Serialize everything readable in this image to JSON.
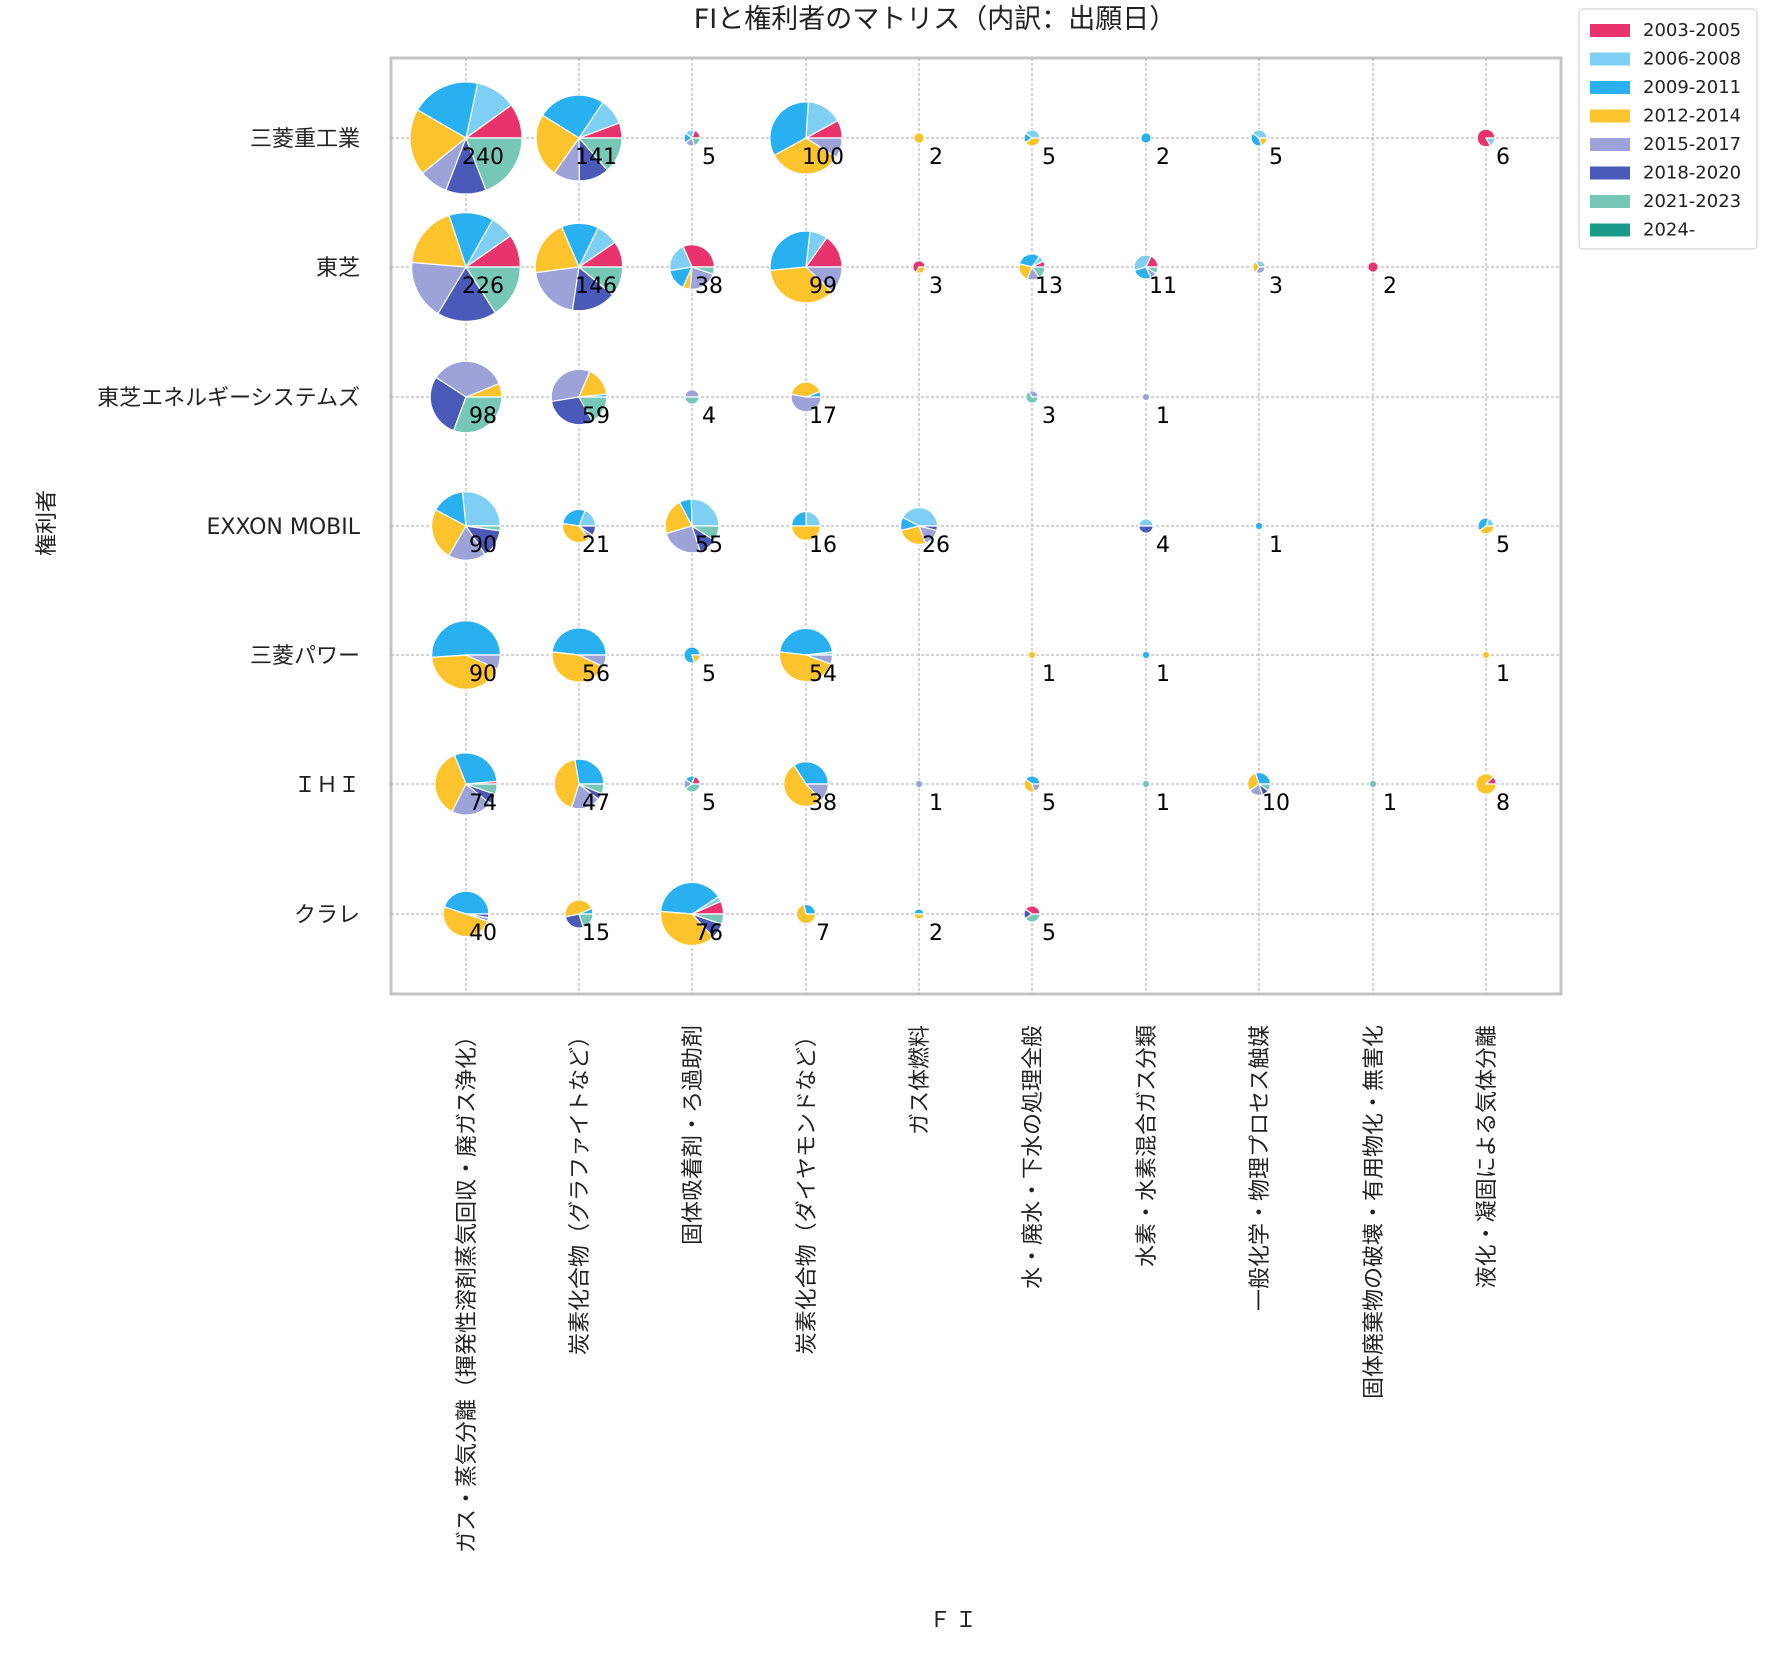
{
  "chart_data": {
    "type": "pie",
    "subtype": "pie-matrix",
    "title": "FIと権利者のマトリス（内訳：出願日）",
    "xlabel": "ＦＩ",
    "ylabel": "権利者",
    "grid": true,
    "legend_position": "top-right",
    "rows": [
      "三菱重工業",
      "東芝",
      "東芝エネルギーシステムズ",
      "EXXON MOBIL",
      "三菱パワー",
      "ＩＨＩ",
      "クラレ"
    ],
    "columns": [
      "ガス・蒸気分離（揮発性溶剤蒸気回収・廃ガス浄化）",
      "炭素化合物（グラファイトなど）",
      "固体吸着剤・ろ過助剤",
      "炭素化合物（ダイヤモンドなど）",
      "ガス体燃料",
      "水・廃水・下水の処理全般",
      "水素・水素混合ガス分類",
      "一般化学・物理プロセス触媒",
      "固体廃棄物の破壊・有用物化・無害化",
      "液化・凝固による気体分離"
    ],
    "series": [
      {
        "name": "2003-2005",
        "color": "#e8336d"
      },
      {
        "name": "2006-2008",
        "color": "#7fcff5"
      },
      {
        "name": "2009-2011",
        "color": "#29b0f0"
      },
      {
        "name": "2012-2014",
        "color": "#fdc32d"
      },
      {
        "name": "2015-2017",
        "color": "#9da3d8"
      },
      {
        "name": "2018-2020",
        "color": "#4b5ab8"
      },
      {
        "name": "2021-2023",
        "color": "#76c7b6"
      },
      {
        "name": "2024-",
        "color": "#1a9a88"
      }
    ],
    "cells": [
      {
        "row": 0,
        "col": 0,
        "total": 240,
        "values": [
          24,
          28,
          48,
          46,
          20,
          28,
          46,
          0
        ]
      },
      {
        "row": 0,
        "col": 1,
        "total": 141,
        "values": [
          8,
          14,
          36,
          34,
          14,
          16,
          19,
          0
        ]
      },
      {
        "row": 0,
        "col": 2,
        "total": 5,
        "values": [
          1,
          1,
          1,
          0,
          1,
          0,
          1,
          0
        ]
      },
      {
        "row": 0,
        "col": 3,
        "total": 100,
        "values": [
          8,
          16,
          34,
          33,
          9,
          0,
          0,
          0
        ]
      },
      {
        "row": 0,
        "col": 4,
        "total": 2,
        "values": [
          0,
          0,
          0,
          2,
          0,
          0,
          0,
          0
        ]
      },
      {
        "row": 0,
        "col": 5,
        "total": 5,
        "values": [
          0,
          2,
          1,
          2,
          0,
          0,
          0,
          0
        ]
      },
      {
        "row": 0,
        "col": 6,
        "total": 2,
        "values": [
          0,
          0,
          2,
          0,
          0,
          0,
          0,
          0
        ]
      },
      {
        "row": 0,
        "col": 7,
        "total": 5,
        "values": [
          0,
          2,
          2,
          1,
          0,
          0,
          0,
          0
        ]
      },
      {
        "row": 0,
        "col": 9,
        "total": 6,
        "values": [
          5,
          1,
          0,
          0,
          0,
          0,
          0,
          0
        ]
      },
      {
        "row": 1,
        "col": 0,
        "total": 226,
        "values": [
          22,
          16,
          30,
          42,
          40,
          40,
          36,
          0
        ]
      },
      {
        "row": 1,
        "col": 1,
        "total": 146,
        "values": [
          14,
          12,
          20,
          30,
          30,
          24,
          16,
          0
        ]
      },
      {
        "row": 1,
        "col": 2,
        "total": 38,
        "values": [
          12,
          8,
          6,
          2,
          8,
          0,
          2,
          0
        ]
      },
      {
        "row": 1,
        "col": 3,
        "total": 99,
        "values": [
          15,
          8,
          28,
          36,
          12,
          0,
          0,
          0
        ]
      },
      {
        "row": 1,
        "col": 4,
        "total": 3,
        "values": [
          2,
          0,
          0,
          1,
          0,
          0,
          0,
          0
        ]
      },
      {
        "row": 1,
        "col": 5,
        "total": 13,
        "values": [
          1,
          1,
          4,
          3,
          2,
          0,
          2,
          0
        ]
      },
      {
        "row": 1,
        "col": 6,
        "total": 11,
        "values": [
          2,
          4,
          3,
          0,
          1,
          0,
          1,
          0
        ]
      },
      {
        "row": 1,
        "col": 7,
        "total": 3,
        "values": [
          0,
          1,
          0,
          1,
          1,
          0,
          0,
          0
        ]
      },
      {
        "row": 1,
        "col": 8,
        "total": 2,
        "values": [
          2,
          0,
          0,
          0,
          0,
          0,
          0,
          0
        ]
      },
      {
        "row": 2,
        "col": 0,
        "total": 98,
        "values": [
          0,
          0,
          0,
          6,
          34,
          28,
          30,
          0
        ]
      },
      {
        "row": 2,
        "col": 1,
        "total": 59,
        "values": [
          0,
          0,
          1,
          10,
          20,
          18,
          10,
          0
        ]
      },
      {
        "row": 2,
        "col": 2,
        "total": 4,
        "values": [
          0,
          0,
          0,
          0,
          2,
          0,
          2,
          0
        ]
      },
      {
        "row": 2,
        "col": 3,
        "total": 17,
        "values": [
          0,
          0,
          1,
          7,
          9,
          0,
          0,
          0
        ]
      },
      {
        "row": 2,
        "col": 5,
        "total": 3,
        "values": [
          0,
          0,
          0,
          0,
          1,
          0,
          2,
          0
        ]
      },
      {
        "row": 2,
        "col": 6,
        "total": 1,
        "values": [
          0,
          0,
          0,
          0,
          1,
          0,
          0,
          0
        ]
      },
      {
        "row": 3,
        "col": 0,
        "total": 90,
        "values": [
          0,
          24,
          14,
          22,
          16,
          12,
          2,
          0
        ]
      },
      {
        "row": 3,
        "col": 1,
        "total": 21,
        "values": [
          0,
          4,
          6,
          8,
          1,
          2,
          0,
          0
        ]
      },
      {
        "row": 3,
        "col": 2,
        "total": 55,
        "values": [
          0,
          14,
          4,
          12,
          14,
          6,
          5,
          0
        ]
      },
      {
        "row": 3,
        "col": 3,
        "total": 16,
        "values": [
          0,
          4,
          4,
          8,
          0,
          0,
          0,
          0
        ]
      },
      {
        "row": 3,
        "col": 4,
        "total": 26,
        "values": [
          0,
          11,
          3,
          7,
          4,
          1,
          0,
          0
        ]
      },
      {
        "row": 3,
        "col": 6,
        "total": 4,
        "values": [
          0,
          2,
          0,
          0,
          0,
          2,
          0,
          0
        ]
      },
      {
        "row": 3,
        "col": 7,
        "total": 1,
        "values": [
          0,
          0,
          1,
          0,
          0,
          0,
          0,
          0
        ]
      },
      {
        "row": 3,
        "col": 9,
        "total": 5,
        "values": [
          0,
          1,
          2,
          2,
          0,
          0,
          0,
          0
        ]
      },
      {
        "row": 4,
        "col": 0,
        "total": 90,
        "values": [
          0,
          0,
          46,
          38,
          6,
          0,
          0,
          0
        ]
      },
      {
        "row": 4,
        "col": 1,
        "total": 56,
        "values": [
          0,
          0,
          27,
          25,
          4,
          0,
          0,
          0
        ]
      },
      {
        "row": 4,
        "col": 2,
        "total": 5,
        "values": [
          0,
          0,
          4,
          1,
          0,
          0,
          0,
          0
        ]
      },
      {
        "row": 4,
        "col": 3,
        "total": 54,
        "values": [
          0,
          1,
          25,
          25,
          3,
          0,
          0,
          0
        ]
      },
      {
        "row": 4,
        "col": 5,
        "total": 1,
        "values": [
          0,
          0,
          0,
          1,
          0,
          0,
          0,
          0
        ]
      },
      {
        "row": 4,
        "col": 6,
        "total": 1,
        "values": [
          0,
          0,
          1,
          0,
          0,
          0,
          0,
          0
        ]
      },
      {
        "row": 4,
        "col": 9,
        "total": 1,
        "values": [
          0,
          0,
          0,
          1,
          0,
          0,
          0,
          0
        ]
      },
      {
        "row": 5,
        "col": 0,
        "total": 74,
        "values": [
          1,
          0,
          22,
          27,
          16,
          4,
          4,
          0
        ]
      },
      {
        "row": 5,
        "col": 1,
        "total": 47,
        "values": [
          0,
          0,
          13,
          20,
          9,
          2,
          3,
          0
        ]
      },
      {
        "row": 5,
        "col": 2,
        "total": 5,
        "values": [
          1,
          0,
          1,
          0,
          1,
          0,
          2,
          0
        ]
      },
      {
        "row": 5,
        "col": 3,
        "total": 38,
        "values": [
          0,
          0,
          13,
          20,
          5,
          0,
          0,
          0
        ]
      },
      {
        "row": 5,
        "col": 4,
        "total": 1,
        "values": [
          0,
          0,
          0,
          0,
          1,
          0,
          0,
          0
        ]
      },
      {
        "row": 5,
        "col": 5,
        "total": 5,
        "values": [
          0,
          0,
          2,
          2,
          1,
          0,
          0,
          0
        ]
      },
      {
        "row": 5,
        "col": 6,
        "total": 1,
        "values": [
          0,
          0,
          0,
          0,
          0,
          0,
          1,
          0
        ]
      },
      {
        "row": 5,
        "col": 7,
        "total": 10,
        "values": [
          0,
          0,
          3,
          3,
          2,
          1,
          1,
          0
        ]
      },
      {
        "row": 5,
        "col": 8,
        "total": 1,
        "values": [
          0,
          0,
          0,
          0,
          0,
          0,
          1,
          0
        ]
      },
      {
        "row": 5,
        "col": 9,
        "total": 8,
        "values": [
          1,
          0,
          0,
          7,
          0,
          0,
          0,
          0
        ]
      },
      {
        "row": 6,
        "col": 0,
        "total": 40,
        "values": [
          0,
          0,
          18,
          20,
          1,
          1,
          0,
          0
        ]
      },
      {
        "row": 6,
        "col": 1,
        "total": 15,
        "values": [
          0,
          0,
          1,
          7,
          0,
          4,
          3,
          0
        ]
      },
      {
        "row": 6,
        "col": 2,
        "total": 76,
        "values": [
          5,
          2,
          30,
          29,
          0,
          6,
          4,
          0
        ]
      },
      {
        "row": 6,
        "col": 3,
        "total": 7,
        "values": [
          0,
          0,
          2,
          5,
          0,
          0,
          0,
          0
        ]
      },
      {
        "row": 6,
        "col": 4,
        "total": 2,
        "values": [
          0,
          0,
          1,
          1,
          0,
          0,
          0,
          0
        ]
      },
      {
        "row": 6,
        "col": 5,
        "total": 5,
        "values": [
          2,
          0,
          0,
          0,
          0,
          1,
          2,
          0
        ]
      }
    ]
  }
}
